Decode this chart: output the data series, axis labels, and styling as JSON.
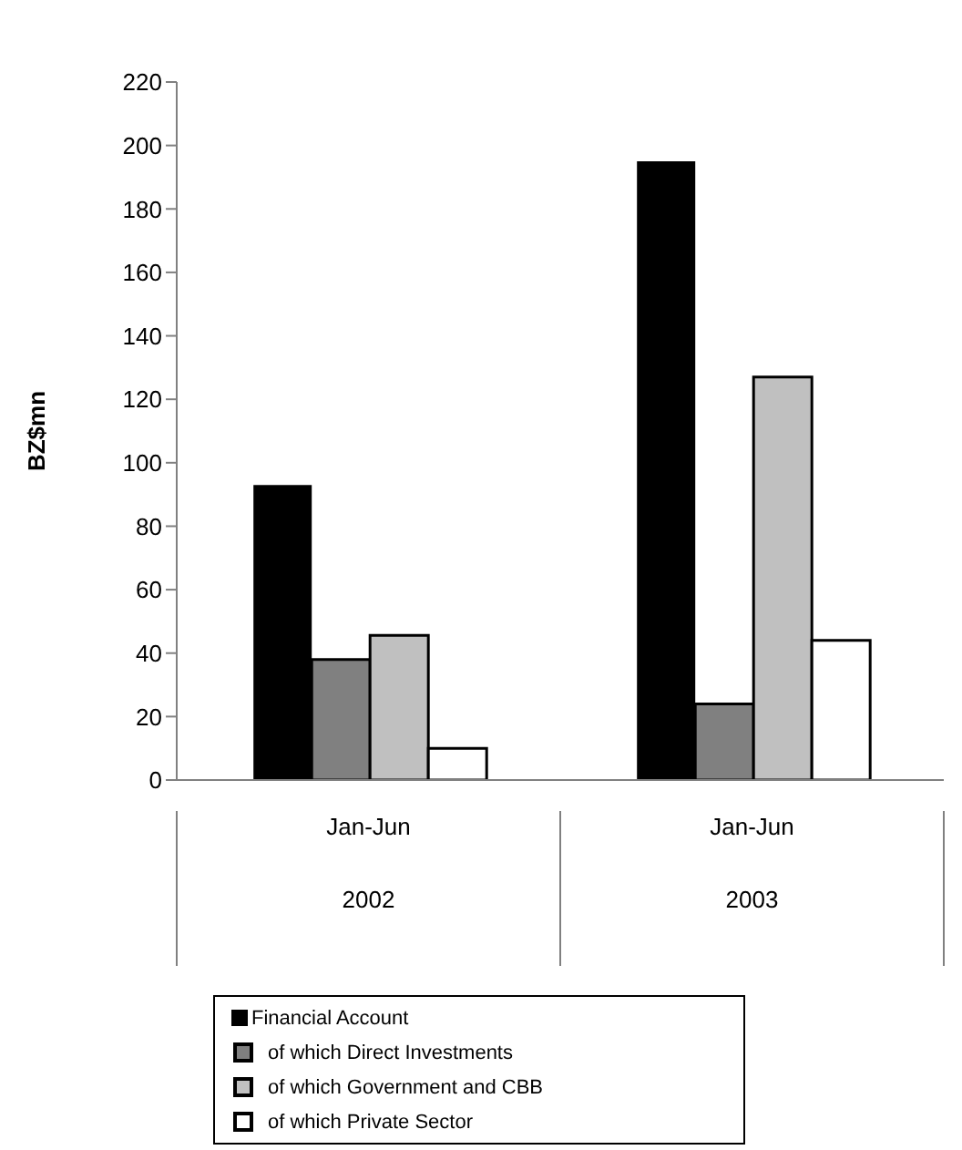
{
  "chart_data": {
    "type": "bar",
    "ylabel": "BZ$mn",
    "categories": [
      "Jan-Jun\n2002",
      "Jan-Jun\n2003"
    ],
    "series": [
      {
        "name": "Financial Account",
        "color": "#000000",
        "values": [
          93,
          195
        ]
      },
      {
        "name": "of which Direct Investments",
        "color": "#808080",
        "values": [
          38,
          24
        ]
      },
      {
        "name": "of which Government and CBB",
        "color": "#c0c0c0",
        "values": [
          45.6,
          127
        ]
      },
      {
        "name": "of which Private Sector",
        "color": "#ffffff",
        "values": [
          10,
          44
        ]
      }
    ],
    "ylim": [
      0,
      220
    ],
    "yticks": [
      0,
      20,
      40,
      60,
      80,
      100,
      120,
      140,
      160,
      180,
      200,
      220
    ],
    "grid": false,
    "legend": "bottom"
  }
}
